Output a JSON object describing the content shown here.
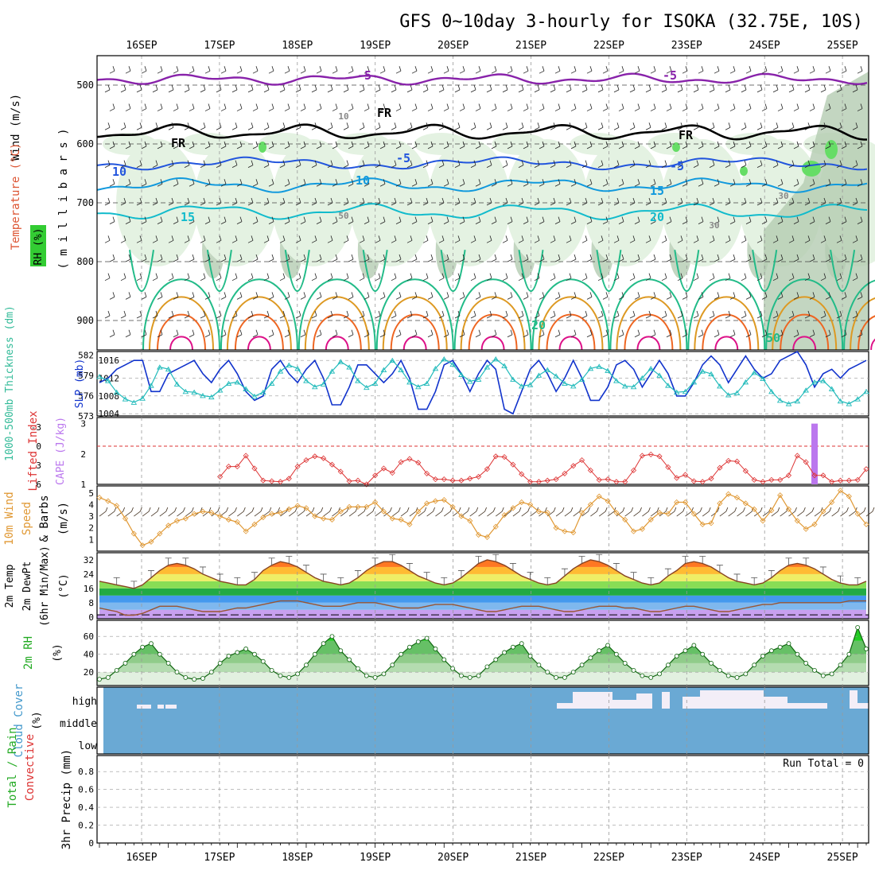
{
  "title": "GFS 0~10day 3-hourly for ISOKA (32.75E, 10S)",
  "dates": [
    "16SEP",
    "17SEP",
    "18SEP",
    "19SEP",
    "20SEP",
    "21SEP",
    "22SEP",
    "23SEP",
    "24SEP",
    "25SEP"
  ],
  "chart_data": [
    {
      "type": "heatmap",
      "panel": "upper-air",
      "ylabel_parts": [
        "RH (%)",
        "Temperature (°C)",
        "Wind (m/s)"
      ],
      "ylabel_sub": "( m i l l i b a r s )",
      "yticks": [
        500,
        600,
        700,
        800,
        900
      ],
      "ylim": [
        950,
        450
      ],
      "isotherm_labels": [
        "-5",
        "-5",
        "FR",
        "FR",
        "FR",
        "-5",
        "-5",
        "10",
        "10",
        "15",
        "15",
        "20",
        "20",
        "50",
        "50",
        "30",
        "30",
        "10"
      ],
      "colors": {
        "rh_light": "#e4f2e2",
        "rh_mid": "#b4ccb2",
        "rh_dark": "#8aa888",
        "rh_green": "#66dd66",
        "m5": "#8822aa",
        "fr": "#000000",
        "t5": "#2255dd",
        "t10": "#1199dd",
        "t15": "#11bbcc",
        "t20": "#22bb88",
        "t25": "#dd9922",
        "t30": "#ee6622",
        "t35": "#dd1188"
      }
    },
    {
      "type": "line",
      "panel": "thickness-slp",
      "ylabel_left": "1000-500mb Thickness (dm)",
      "ylabel_right": "SLP (mb)",
      "left_ticks": [
        573,
        576,
        579,
        582
      ],
      "right_ticks": [
        1004,
        1008,
        1012,
        1016
      ],
      "series": [
        {
          "name": "SLP (mb)",
          "color": "#1133cc",
          "values": [
            1011,
            1012,
            1014,
            1015,
            1016,
            1016,
            1009,
            1009,
            1013,
            1014,
            1015,
            1016,
            1013,
            1011,
            1014,
            1016,
            1013,
            1009,
            1007,
            1008,
            1014,
            1016,
            1013,
            1011,
            1014,
            1016,
            1012,
            1006,
            1006,
            1010,
            1015,
            1015,
            1013,
            1011,
            1013,
            1016,
            1012,
            1005,
            1005,
            1009,
            1015,
            1016,
            1013,
            1009,
            1013,
            1016,
            1014,
            1005,
            1004,
            1009,
            1014,
            1016,
            1013,
            1009,
            1012,
            1016,
            1012,
            1007,
            1007,
            1010,
            1015,
            1016,
            1014,
            1010,
            1013,
            1016,
            1013,
            1008,
            1008,
            1011,
            1015,
            1017,
            1015,
            1011,
            1014,
            1017,
            1014,
            1012,
            1013,
            1016,
            1017,
            1018,
            1015,
            1010,
            1013,
            1014,
            1012,
            1014,
            1015,
            1016
          ]
        },
        {
          "name": "Thickness (dm)",
          "color": "#22bbbb",
          "values": [
            578.8,
            578.2,
            576.5,
            575.5,
            575.0,
            575.6,
            577.5,
            580.2,
            579.9,
            577.7,
            576.6,
            576.5,
            576.0,
            575.8,
            576.8,
            577.8,
            578.0,
            577.0,
            575.9,
            576.5,
            577.8,
            579.6,
            580.5,
            580.0,
            578.2,
            577.3,
            577.7,
            579.6,
            581.0,
            580.2,
            578.2,
            577.2,
            577.8,
            579.8,
            581.2,
            579.8,
            578.0,
            577.3,
            577.8,
            580.0,
            581.4,
            580.6,
            579.1,
            578.1,
            578.4,
            580.2,
            581.4,
            580.4,
            578.4,
            577.4,
            577.6,
            579.0,
            579.8,
            578.9,
            577.8,
            577.4,
            578.4,
            580.0,
            580.3,
            579.7,
            578.2,
            577.4,
            577.3,
            578.6,
            580.0,
            579.0,
            577.5,
            576.5,
            576.6,
            578.0,
            579.6,
            579.2,
            577.4,
            576.1,
            576.4,
            578.0,
            579.4,
            578.5,
            576.6,
            575.3,
            574.8,
            575.2,
            576.8,
            578.0,
            578.2,
            577.0,
            575.2,
            574.8,
            575.5,
            576.6
          ]
        }
      ]
    },
    {
      "type": "line",
      "panel": "lifted-cape",
      "ylabel_left": "Lifted Index",
      "ylabel_right": "CAPE (J/kg)",
      "left_ticks": [
        -3,
        0,
        3,
        6
      ],
      "right_ticks": [
        1,
        2,
        3
      ],
      "series": [
        {
          "name": "Lifted Index",
          "color": "#dd3333",
          "values": [
            9,
            9,
            9,
            9,
            9,
            9,
            9,
            9,
            9,
            9,
            9,
            9,
            9,
            9,
            4.8,
            3.2,
            3.2,
            1.5,
            3.5,
            5.4,
            5.5,
            5.6,
            5.1,
            3.2,
            2.2,
            1.6,
            1.9,
            2.9,
            4.0,
            5.5,
            5.4,
            6.0,
            4.6,
            3.5,
            4.2,
            2.5,
            2.0,
            2.6,
            4.3,
            5.2,
            5.2,
            5.4,
            5.4,
            5.1,
            4.8,
            3.6,
            1.6,
            1.7,
            2.9,
            4.4,
            5.6,
            5.6,
            5.4,
            5.2,
            4.3,
            3.1,
            2.2,
            3.8,
            5.3,
            5.2,
            5.6,
            5.6,
            3.8,
            1.5,
            1.3,
            1.6,
            3.3,
            5.0,
            4.5,
            5.5,
            5.6,
            5.1,
            3.4,
            2.3,
            2.4,
            3.9,
            5.3,
            5.6,
            5.3,
            5.3,
            4.6,
            1.5,
            2.5,
            4.6,
            4.6,
            5.6,
            5.4,
            5.4,
            5.3,
            3.6
          ]
        },
        {
          "name": "CAPE (J/kg)",
          "color": "#bb77ee",
          "values": [
            0,
            0,
            0,
            0,
            0,
            0,
            0,
            0,
            0,
            0,
            0,
            0,
            0,
            0,
            0,
            0,
            0,
            0,
            0,
            0,
            0,
            0,
            0,
            0,
            0,
            0,
            0,
            0,
            0,
            0,
            0,
            0,
            0,
            0,
            0,
            0,
            0,
            0,
            0,
            0,
            0,
            0,
            0,
            0,
            0,
            0,
            0,
            0,
            0,
            0,
            0,
            0,
            0,
            0,
            0,
            0,
            0,
            0,
            0,
            0,
            0,
            0,
            0,
            0,
            0,
            0,
            0,
            0,
            0,
            0,
            0,
            0,
            0,
            0,
            0,
            0,
            0,
            0,
            0,
            0,
            0,
            0,
            0,
            3,
            0,
            0,
            0,
            0,
            0,
            0
          ]
        }
      ]
    },
    {
      "type": "line",
      "panel": "10m-wind",
      "ylabel_parts": [
        "10m Wind",
        "Speed",
        "& Barbs",
        "(m/s)"
      ],
      "yticks": [
        1,
        2,
        3,
        4,
        5
      ],
      "series": [
        {
          "name": "10m Wind Speed (m/s)",
          "color": "#e09833",
          "values": [
            4.6,
            4.3,
            3.9,
            2.8,
            1.5,
            0.5,
            0.8,
            1.5,
            2.2,
            2.6,
            2.8,
            3.2,
            3.4,
            3.3,
            3.0,
            2.7,
            2.5,
            1.7,
            2.3,
            2.9,
            3.2,
            3.3,
            3.6,
            3.9,
            3.7,
            3.0,
            2.8,
            2.7,
            3.4,
            3.8,
            3.8,
            3.8,
            4.2,
            3.4,
            2.8,
            2.7,
            2.3,
            3.4,
            4.1,
            4.3,
            4.4,
            3.8,
            3.0,
            2.6,
            1.4,
            1.2,
            2.1,
            3.1,
            3.7,
            4.2,
            4.0,
            3.4,
            3.3,
            2.0,
            1.7,
            1.6,
            3.3,
            4.0,
            4.7,
            4.3,
            3.3,
            2.7,
            1.7,
            1.9,
            2.7,
            3.3,
            3.2,
            4.2,
            4.2,
            3.2,
            2.3,
            2.4,
            4.1,
            4.9,
            4.6,
            4.1,
            3.6,
            2.6,
            3.5,
            4.8,
            3.6,
            2.6,
            1.9,
            2.3,
            3.4,
            4.2,
            5.2,
            4.7,
            3.2,
            2.3
          ]
        }
      ]
    },
    {
      "type": "area",
      "panel": "2m-temp",
      "ylabel_parts": [
        "2m Temp",
        "2m DewPt",
        "(6hr Min/Max)",
        "(°C)"
      ],
      "yticks": [
        0,
        8,
        16,
        24,
        32
      ],
      "series": [
        {
          "name": "2m Temp",
          "color": "#884422",
          "values": [
            20,
            19,
            18,
            17,
            16,
            18,
            22,
            26,
            29,
            30,
            29,
            27,
            24,
            22,
            20,
            19,
            18,
            18,
            21,
            26,
            29,
            31,
            30,
            28,
            25,
            22,
            20,
            19,
            18,
            19,
            22,
            26,
            29,
            31,
            31,
            29,
            26,
            23,
            21,
            19,
            18,
            19,
            22,
            26,
            30,
            32,
            31,
            29,
            26,
            23,
            21,
            19,
            18,
            19,
            23,
            27,
            30,
            32,
            31,
            29,
            26,
            23,
            21,
            19,
            18,
            19,
            23,
            26,
            30,
            31,
            30,
            28,
            25,
            22,
            20,
            19,
            18,
            19,
            22,
            26,
            29,
            30,
            29,
            27,
            24,
            21,
            19,
            18,
            18,
            20
          ]
        },
        {
          "name": "2m DewPt",
          "color": "#995533",
          "values": [
            5,
            4,
            3,
            1,
            1,
            2,
            4,
            6,
            6,
            6,
            5,
            4,
            3,
            3,
            3,
            4,
            5,
            5,
            6,
            7,
            8,
            9,
            9,
            9,
            8,
            7,
            6,
            6,
            6,
            7,
            8,
            8,
            8,
            7,
            6,
            5,
            5,
            5,
            6,
            7,
            7,
            7,
            6,
            5,
            4,
            3,
            3,
            4,
            5,
            6,
            6,
            6,
            5,
            4,
            3,
            3,
            4,
            5,
            6,
            6,
            6,
            5,
            5,
            4,
            3,
            3,
            4,
            5,
            6,
            6,
            5,
            4,
            3,
            3,
            4,
            5,
            6,
            7,
            7,
            8,
            8,
            8,
            8,
            8,
            8,
            8,
            8,
            9,
            9,
            9
          ]
        }
      ]
    },
    {
      "type": "area",
      "panel": "2m-rh",
      "ylabel": "2m RH",
      "yunit": "(%)",
      "yticks": [
        20,
        40,
        60
      ],
      "series": [
        {
          "name": "2m RH",
          "color": "#22aa22",
          "values": [
            12,
            14,
            22,
            30,
            40,
            48,
            52,
            40,
            30,
            20,
            14,
            12,
            13,
            20,
            30,
            38,
            42,
            46,
            40,
            32,
            22,
            16,
            14,
            18,
            28,
            40,
            52,
            60,
            44,
            34,
            24,
            16,
            14,
            18,
            28,
            40,
            48,
            54,
            58,
            46,
            34,
            24,
            16,
            14,
            16,
            26,
            34,
            42,
            48,
            52,
            38,
            28,
            20,
            14,
            14,
            20,
            28,
            36,
            44,
            50,
            40,
            30,
            22,
            16,
            14,
            18,
            28,
            38,
            44,
            50,
            40,
            30,
            22,
            16,
            14,
            18,
            28,
            38,
            44,
            48,
            52,
            40,
            30,
            22,
            16,
            18,
            28,
            40,
            70,
            46
          ]
        }
      ]
    },
    {
      "type": "heatmap",
      "panel": "cloud-cover",
      "ylabel": "Cloud Cover",
      "yunit": "(%)",
      "levels": [
        "high",
        "middle",
        "low"
      ],
      "colors": {
        "cloud": "#6aa9d4",
        "clear": "#f3eef7"
      }
    },
    {
      "type": "line",
      "panel": "precip",
      "ylabel_parts": [
        "Total / Rain",
        "Convective",
        "3hr Precip (mm)"
      ],
      "yticks": [
        0,
        0.2,
        0.4,
        0.6,
        0.8
      ],
      "run_total": "Run Total = 0"
    }
  ]
}
